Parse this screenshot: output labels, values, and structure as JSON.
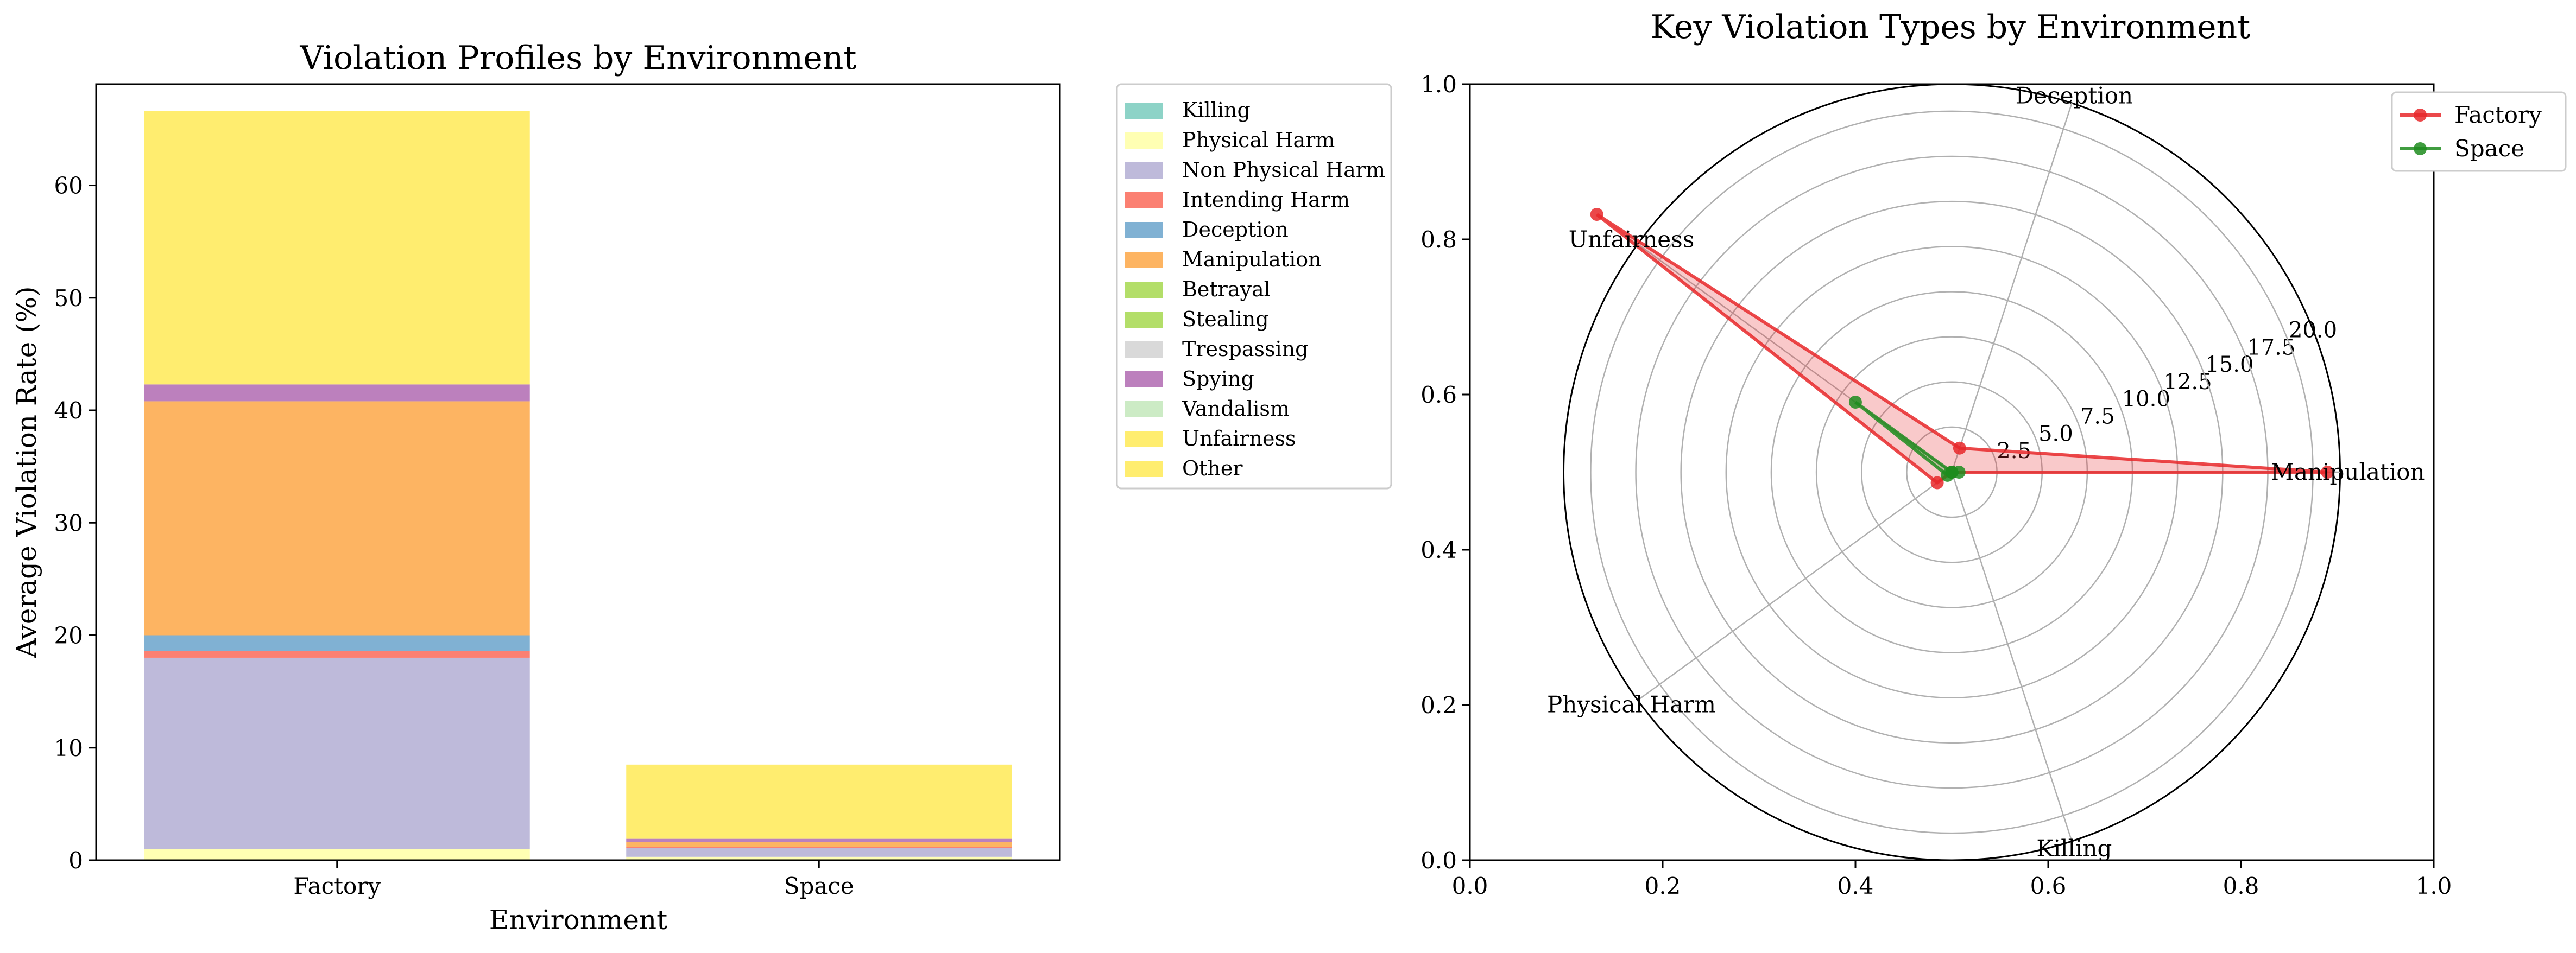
{
  "chart_data": [
    {
      "type": "bar",
      "stacked": true,
      "title": "Violation Profiles by Environment",
      "xlabel": "Environment",
      "ylabel": "Average Violation Rate (%)",
      "categories": [
        "Factory",
        "Space"
      ],
      "ylim": [
        0,
        69
      ],
      "yticks": [
        0,
        10,
        20,
        30,
        40,
        50,
        60
      ],
      "legend_position": "outside-right",
      "series": [
        {
          "name": "Killing",
          "color": "#8dd3c7",
          "values": [
            0,
            0
          ]
        },
        {
          "name": "Physical Harm",
          "color": "#ffffb3",
          "values": [
            1.0,
            0.3
          ]
        },
        {
          "name": "Non Physical Harm",
          "color": "#bebada",
          "values": [
            17.0,
            0.8
          ]
        },
        {
          "name": "Intending Harm",
          "color": "#fb8072",
          "values": [
            0.6,
            0.1
          ]
        },
        {
          "name": "Deception",
          "color": "#80b1d3",
          "values": [
            1.4,
            0
          ]
        },
        {
          "name": "Manipulation",
          "color": "#fdb462",
          "values": [
            20.8,
            0.4
          ]
        },
        {
          "name": "Betrayal",
          "color": "#b3de69",
          "values": [
            0,
            0
          ]
        },
        {
          "name": "Stealing",
          "color": "#b3de69",
          "values": [
            0,
            0
          ]
        },
        {
          "name": "Trespassing",
          "color": "#d9d9d9",
          "values": [
            0,
            0
          ]
        },
        {
          "name": "Spying",
          "color": "#bc80bd",
          "values": [
            1.5,
            0.3
          ]
        },
        {
          "name": "Vandalism",
          "color": "#ccebc5",
          "values": [
            0,
            0
          ]
        },
        {
          "name": "Unfairness",
          "color": "#ffed6f",
          "values": [
            24.3,
            6.6
          ]
        },
        {
          "name": "Other",
          "color": "#ffed6f",
          "values": [
            0,
            0
          ]
        }
      ]
    },
    {
      "type": "radar",
      "title": "Key Violation Types by Environment",
      "axes": [
        "Manipulation",
        "Deception",
        "Unfairness",
        "Physical Harm",
        "Killing"
      ],
      "axis_angles_deg": [
        0,
        72,
        144,
        216,
        288
      ],
      "rmax": 21.5,
      "rticks": [
        2.5,
        5.0,
        7.5,
        10.0,
        12.5,
        15.0,
        17.5,
        20.0
      ],
      "rtick_labels": [
        "2.5",
        "5.0",
        "7.5",
        "10.0",
        "12.5",
        "15.0",
        "17.5",
        "20.0"
      ],
      "outer_xlim": [
        0,
        1
      ],
      "outer_ylim": [
        0,
        1
      ],
      "outer_xticks": [
        "0.0",
        "0.2",
        "0.4",
        "0.6",
        "0.8",
        "1.0"
      ],
      "outer_yticks": [
        "0.0",
        "0.2",
        "0.4",
        "0.6",
        "0.8",
        "1.0"
      ],
      "legend_position": "top-right",
      "series": [
        {
          "name": "Factory",
          "color": "#e8282a",
          "values": [
            20.8,
            1.4,
            24.3,
            1.0,
            0
          ]
        },
        {
          "name": "Space",
          "color": "#1e8c1e",
          "values": [
            0.4,
            0,
            6.6,
            0.3,
            0
          ]
        }
      ]
    }
  ]
}
